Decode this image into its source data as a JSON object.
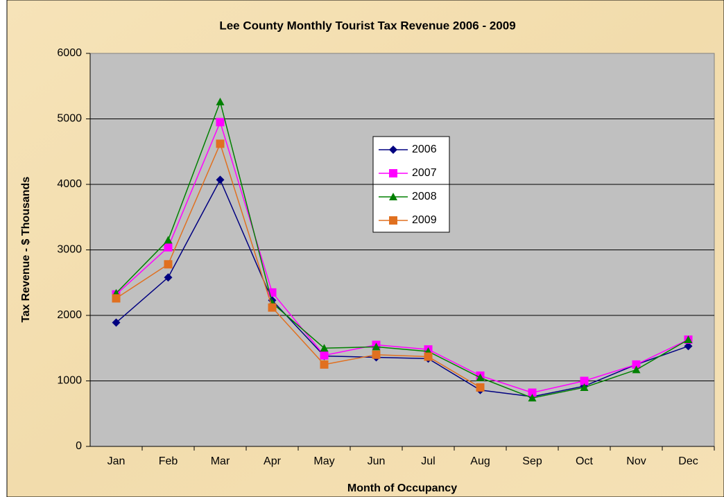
{
  "chart_data": {
    "type": "line",
    "title": "Lee County Monthly Tourist Tax Revenue 2006 - 2009",
    "x_label": "Month of Occupancy",
    "y_label": "Tax Revenue - $ Thousands",
    "categories": [
      "Jan",
      "Feb",
      "Mar",
      "Apr",
      "May",
      "Jun",
      "Jul",
      "Aug",
      "Sep",
      "Oct",
      "Nov",
      "Dec"
    ],
    "series": [
      {
        "name": "2006",
        "color": "#000080",
        "marker": "diamond",
        "values": [
          1890,
          2580,
          4070,
          2230,
          1380,
          1360,
          1340,
          860,
          760,
          920,
          1250,
          1530
        ]
      },
      {
        "name": "2007",
        "color": "#ff00ff",
        "marker": "square",
        "values": [
          2320,
          3040,
          4950,
          2350,
          1390,
          1550,
          1480,
          1080,
          820,
          1000,
          1250,
          1630
        ]
      },
      {
        "name": "2008",
        "color": "#008000",
        "marker": "triangle",
        "values": [
          2340,
          3150,
          5260,
          2190,
          1500,
          1520,
          1450,
          1050,
          740,
          900,
          1170,
          1630
        ]
      },
      {
        "name": "2009",
        "color": "#e07020",
        "marker": "square",
        "values": [
          2260,
          2780,
          4620,
          2120,
          1250,
          1400,
          1370,
          900,
          null,
          null,
          null,
          null
        ]
      }
    ],
    "ylim": [
      0,
      6000
    ],
    "yticks": [
      0,
      1000,
      2000,
      3000,
      4000,
      5000,
      6000
    ],
    "grid": true
  }
}
